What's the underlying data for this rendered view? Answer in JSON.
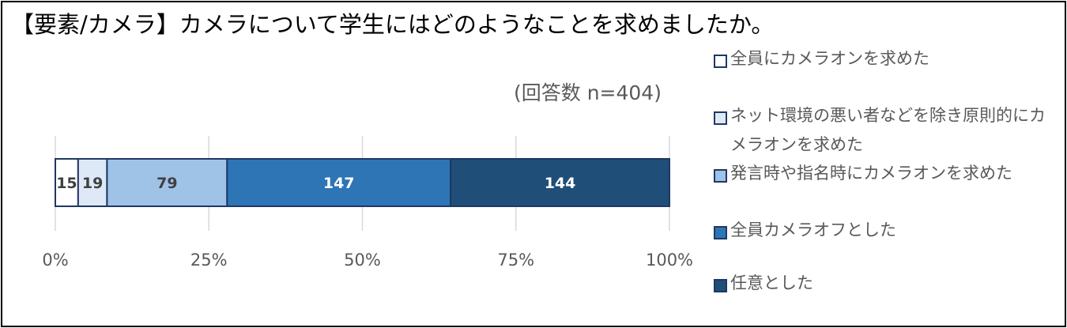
{
  "chart_data": {
    "type": "bar",
    "orientation": "horizontal",
    "stacked": "percent",
    "title": "【要素/カメラ】カメラについて学生にはどのようなことを求めましたか。",
    "subtitle": "(回答数 n=404)",
    "categories": [
      ""
    ],
    "series": [
      {
        "name": "全員にカメラオンを求めた",
        "values": [
          15
        ],
        "color": "#ffffff",
        "label_color": "#404040"
      },
      {
        "name": "ネット環境の悪い者などを除き原則的にカメラオンを求めた",
        "values": [
          19
        ],
        "color": "#dde9f7",
        "label_color": "#404040"
      },
      {
        "name": "発言時や指名時にカメラオンを求めた",
        "values": [
          79
        ],
        "color": "#9fc3e7",
        "label_color": "#404040"
      },
      {
        "name": "全員カメラオフとした",
        "values": [
          147
        ],
        "color": "#2e75b6",
        "label_color": "#ffffff"
      },
      {
        "name": "任意とした",
        "values": [
          144
        ],
        "color": "#1f4e79",
        "label_color": "#ffffff"
      }
    ],
    "xlim": [
      0,
      100
    ],
    "xticks": [
      "0%",
      "25%",
      "50%",
      "75%",
      "100%"
    ],
    "grid": true,
    "legend": "right"
  }
}
